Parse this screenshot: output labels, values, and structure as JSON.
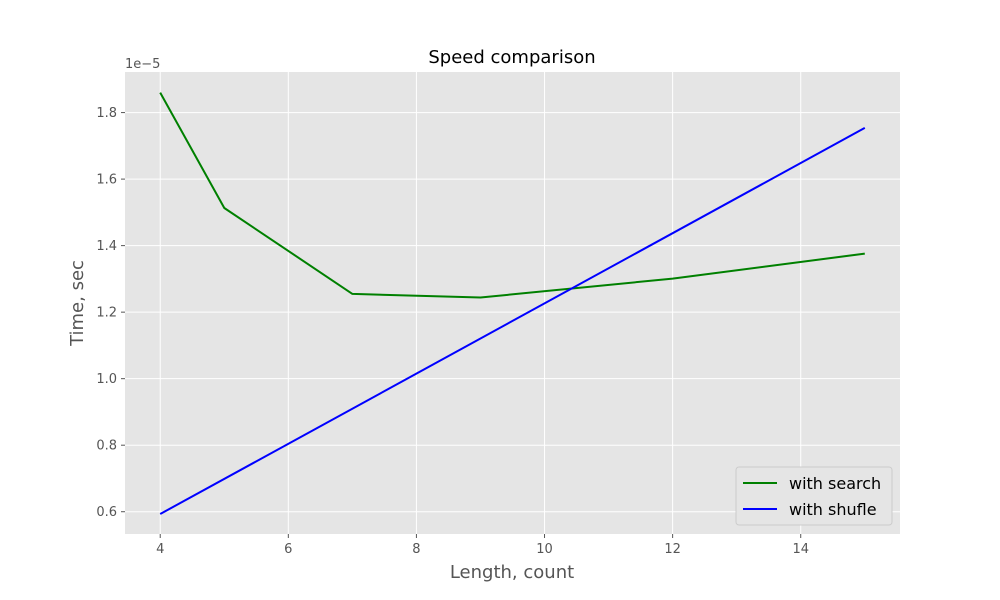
{
  "chart_data": {
    "type": "line",
    "title": "Speed comparison",
    "xlabel": "Length, count",
    "ylabel": "Time, sec",
    "y_offset_label": "1e−5",
    "xlim": [
      3.45,
      15.55
    ],
    "ylim": [
      0.533,
      1.922
    ],
    "x_ticks": [
      4,
      6,
      8,
      10,
      12,
      14
    ],
    "x_tick_labels": [
      "4",
      "6",
      "8",
      "10",
      "12",
      "14"
    ],
    "y_ticks": [
      0.6,
      0.8,
      1.0,
      1.2,
      1.4,
      1.6,
      1.8
    ],
    "y_tick_labels": [
      "0.6",
      "0.8",
      "1.0",
      "1.2",
      "1.4",
      "1.6",
      "1.8"
    ],
    "grid": true,
    "legend_position": "lower right",
    "series": [
      {
        "name": "with search",
        "color": "#008000",
        "x": [
          4,
          5,
          7,
          9,
          12,
          15
        ],
        "y": [
          1.86,
          1.513,
          1.255,
          1.244,
          1.301,
          1.376
        ]
      },
      {
        "name": "with shufle",
        "color": "#0000ff",
        "x": [
          4,
          15
        ],
        "y": [
          0.593,
          1.754
        ]
      }
    ]
  }
}
